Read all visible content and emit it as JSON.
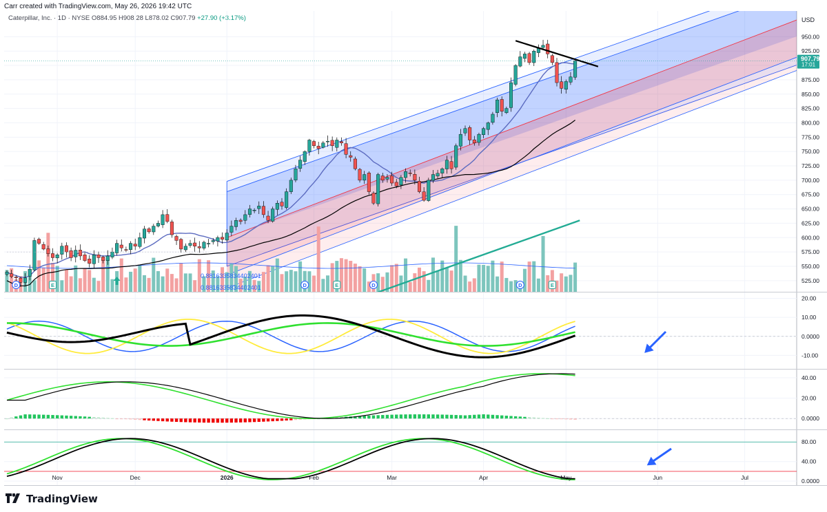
{
  "header": {
    "created_by": "Carr created with TradingView.com, May 26, 2026 19:42 UTC"
  },
  "legend": {
    "symbol": "Caterpillar, Inc. · 1D · NYSE",
    "ohlc": "O884.95  H908.28  L878.02  C907.79",
    "change": "+27.90 (+3.17%)"
  },
  "brand": {
    "name": "TradingView"
  },
  "colors": {
    "up": "#26a69a",
    "down": "#ef5350",
    "ma20": "#5c6bc0",
    "ma50": "#000000",
    "channel_blue": "#2962ff",
    "channel_red": "#f23645",
    "trend_green": "#22ab94",
    "volume_up": "#7dc5bd",
    "volume_down": "#f3a1a1"
  },
  "chart_data": [
    {
      "type": "candlestick",
      "name": "price",
      "currency_label": "USD",
      "y_ticks": [
        525,
        550,
        575,
        600,
        625,
        650,
        675,
        700,
        725,
        750,
        775,
        800,
        825,
        850,
        875,
        900,
        925,
        950
      ],
      "ylim": [
        508,
        990
      ],
      "x_ticks": [
        "Nov",
        "Dec",
        "2026",
        "Feb",
        "Mar",
        "Apr",
        "May",
        "Jun",
        "Jul"
      ],
      "last_price": {
        "value": "907.79",
        "countdown": "17:01"
      },
      "indicator_label": "0.8816335834402401",
      "closes": [
        540,
        532,
        530,
        522,
        530,
        545,
        595,
        590,
        580,
        572,
        565,
        570,
        585,
        575,
        565,
        578,
        568,
        560,
        555,
        570,
        565,
        560,
        568,
        575,
        590,
        582,
        578,
        590,
        585,
        600,
        615,
        610,
        620,
        625,
        640,
        628,
        605,
        595,
        580,
        585,
        590,
        585,
        582,
        592,
        590,
        595,
        600,
        597,
        608,
        620,
        630,
        628,
        640,
        650,
        648,
        655,
        640,
        630,
        650,
        660,
        655,
        680,
        700,
        720,
        735,
        750,
        770,
        760,
        755,
        765,
        768,
        760,
        770,
        765,
        745,
        740,
        720,
        700,
        710,
        680,
        660,
        710,
        700,
        705,
        695,
        690,
        705,
        715,
        712,
        700,
        680,
        665,
        700,
        710,
        712,
        720,
        735,
        720,
        760,
        780,
        790,
        770,
        765,
        780,
        790,
        800,
        815,
        840,
        820,
        825,
        870,
        900,
        915,
        920,
        905,
        925,
        930,
        935,
        920,
        905,
        870,
        860,
        872,
        880,
        907.79
      ],
      "events": [
        {
          "label": "D",
          "index": 2
        },
        {
          "label": "E",
          "index": 10
        },
        {
          "label": "D",
          "index": 65
        },
        {
          "label": "E",
          "index": 72
        },
        {
          "label": "D",
          "index": 80
        },
        {
          "label": "D",
          "index": 112
        },
        {
          "label": "E",
          "index": 119
        }
      ],
      "projection_days": 58
    },
    {
      "type": "line",
      "name": "oscillator",
      "y_ticks": [
        "20.00",
        "10.00",
        "0.0000",
        "-10.00"
      ],
      "ylim": [
        -16,
        22
      ]
    },
    {
      "type": "macd",
      "name": "macd",
      "y_ticks": [
        "40.00",
        "20.00",
        "0.0000"
      ],
      "ylim": [
        -8,
        46
      ]
    },
    {
      "type": "line",
      "name": "stochastic",
      "y_ticks": [
        "80.00",
        "40.00",
        "0.0000"
      ],
      "ylim": [
        -4,
        100
      ],
      "levels": [
        80,
        20
      ]
    }
  ]
}
